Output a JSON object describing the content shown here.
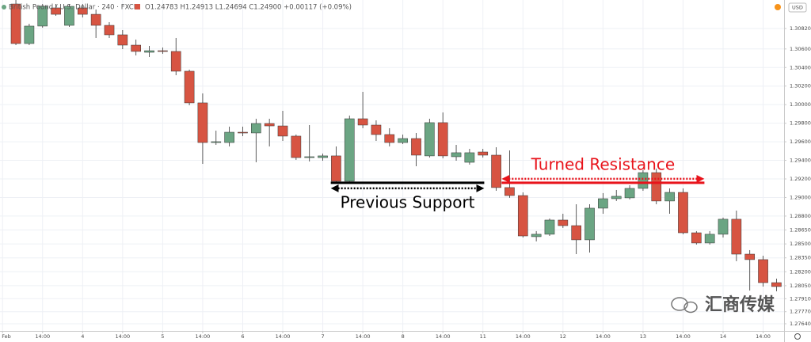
{
  "header": {
    "symbol": "British Pound / U.S. Dollar · 240 · FXCM",
    "ohlc": "O1.24783 H1.24913 L1.24694 C1.24900 +0.00117 (+0.09%)",
    "currency": "USD"
  },
  "watermark": "汇商传媒",
  "chart_data": {
    "type": "candlestick",
    "up_color": "#6ba583",
    "down_color": "#d75442",
    "open": [
      1.31084,
      1.30658,
      1.30846,
      1.31042,
      1.30854,
      1.31042,
      1.30973,
      1.30854,
      1.30752,
      1.30641,
      1.30564,
      1.30581,
      1.30573,
      1.3036,
      1.30019,
      1.29592,
      1.29592,
      1.29703,
      1.29695,
      1.29797,
      1.29771,
      1.29661,
      1.2943,
      1.2943,
      1.29448,
      1.29175,
      1.29848,
      1.2978,
      1.29678,
      1.29592,
      1.29635,
      1.29448,
      1.29806,
      1.29439,
      1.29379,
      1.2949,
      1.29456,
      1.29107,
      1.29021,
      1.28578,
      1.28604,
      1.28757,
      1.28697,
      1.28544,
      1.28885,
      1.28987,
      1.28996,
      1.29098,
      1.29268,
      1.28962,
      1.29055,
      1.2862,
      1.2851,
      1.28604,
      1.28766,
      1.2839,
      1.28331,
      1.28083
    ],
    "high": [
      1.31127,
      1.30871,
      1.31084,
      1.31084,
      1.31084,
      1.31084,
      1.31025,
      1.30888,
      1.30803,
      1.30701,
      1.30632,
      1.30615,
      1.30718,
      1.30377,
      1.30121,
      1.2972,
      1.29763,
      1.29763,
      1.29848,
      1.29848,
      1.29933,
      1.29678,
      1.2978,
      1.29473,
      1.2955,
      1.29882,
      1.30138,
      1.29831,
      1.29746,
      1.29678,
      1.29695,
      1.29848,
      1.29916,
      1.29567,
      1.29524,
      1.29524,
      1.29541,
      1.29507,
      1.29055,
      1.28638,
      1.28774,
      1.28825,
      1.28927,
      1.28927,
      1.29047,
      1.29081,
      1.29132,
      1.29294,
      1.29311,
      1.29098,
      1.29098,
      1.28638,
      1.28638,
      1.28783,
      1.28859,
      1.28433,
      1.28373,
      1.28126
    ],
    "low": [
      1.30641,
      1.30641,
      1.30829,
      1.30956,
      1.30837,
      1.30939,
      1.30718,
      1.30718,
      1.30598,
      1.3053,
      1.30513,
      1.30547,
      1.30317,
      1.29993,
      1.29362,
      1.29567,
      1.2955,
      1.29661,
      1.29379,
      1.2955,
      1.29609,
      1.29405,
      1.29388,
      1.29396,
      1.29149,
      1.29158,
      1.29746,
      1.29609,
      1.2955,
      1.29575,
      1.29337,
      1.2943,
      1.29422,
      1.29396,
      1.29354,
      1.2943,
      1.29072,
      1.28996,
      1.28569,
      1.28527,
      1.28586,
      1.28672,
      1.2839,
      1.28407,
      1.28825,
      1.28962,
      1.28979,
      1.29072,
      1.28927,
      1.28825,
      1.28604,
      1.28493,
      1.28493,
      1.28569,
      1.28314,
      1.27998,
      1.28041,
      1.2799
    ],
    "close": [
      1.30658,
      1.30846,
      1.31059,
      1.30973,
      1.31059,
      1.30973,
      1.30854,
      1.30752,
      1.30641,
      1.30573,
      1.30581,
      1.30573,
      1.3036,
      1.30019,
      1.29592,
      1.29601,
      1.29703,
      1.29695,
      1.29797,
      1.29771,
      1.29661,
      1.2943,
      1.29439,
      1.29448,
      1.29175,
      1.29848,
      1.2978,
      1.29678,
      1.29592,
      1.29635,
      1.29456,
      1.29806,
      1.29448,
      1.29482,
      1.29482,
      1.29456,
      1.29107,
      1.29021,
      1.28586,
      1.28604,
      1.28757,
      1.28697,
      1.28544,
      1.28885,
      1.28987,
      1.29013,
      1.29098,
      1.29268,
      1.28962,
      1.29055,
      1.2862,
      1.2851,
      1.28604,
      1.28766,
      1.2839,
      1.28331,
      1.28083,
      1.28041
    ],
    "xlim": [
      -1.19,
      57.57
    ],
    "xticks": [
      {
        "value": -1,
        "label": "Feb"
      },
      {
        "value": 2,
        "label": "14:00"
      },
      {
        "value": 5,
        "label": "4"
      },
      {
        "value": 8,
        "label": "14:00"
      },
      {
        "value": 11,
        "label": "5"
      },
      {
        "value": 14,
        "label": "14:00"
      },
      {
        "value": 17,
        "label": "6"
      },
      {
        "value": 20,
        "label": "14:00"
      },
      {
        "value": 23,
        "label": "7"
      },
      {
        "value": 26,
        "label": "14:00"
      },
      {
        "value": 29,
        "label": "8"
      },
      {
        "value": 32,
        "label": "14:00"
      },
      {
        "value": 35,
        "label": "11"
      },
      {
        "value": 38,
        "label": "14:00"
      },
      {
        "value": 41,
        "label": "12"
      },
      {
        "value": 44,
        "label": "14:00"
      },
      {
        "value": 47,
        "label": "13"
      },
      {
        "value": 50,
        "label": "14:00"
      },
      {
        "value": 53,
        "label": "14"
      },
      {
        "value": 56,
        "label": "14:00"
      }
    ],
    "ylim": [
      1.27563,
      1.31127
    ],
    "yticks": [
      {
        "value": 1.3082,
        "label": "1.30820"
      },
      {
        "value": 1.306,
        "label": "1.30600"
      },
      {
        "value": 1.304,
        "label": "1.30400"
      },
      {
        "value": 1.302,
        "label": "1.30200"
      },
      {
        "value": 1.3,
        "label": "1.30000"
      },
      {
        "value": 1.298,
        "label": "1.29800"
      },
      {
        "value": 1.296,
        "label": "1.29600"
      },
      {
        "value": 1.294,
        "label": "1.29400"
      },
      {
        "value": 1.292,
        "label": "1.29200"
      },
      {
        "value": 1.29,
        "label": "1.29000"
      },
      {
        "value": 1.288,
        "label": "1.28800"
      },
      {
        "value": 1.2865,
        "label": "1.28650"
      },
      {
        "value": 1.285,
        "label": "1.28500"
      },
      {
        "value": 1.2835,
        "label": "1.28350"
      },
      {
        "value": 1.282,
        "label": "1.28200"
      },
      {
        "value": 1.2805,
        "label": "1.28050"
      },
      {
        "value": 1.2791,
        "label": "1.27910"
      },
      {
        "value": 1.2777,
        "label": "1.27770"
      },
      {
        "value": 1.2764,
        "label": "1.27640"
      }
    ],
    "grid": true,
    "annotations": [
      {
        "text": "Previous Support",
        "level": 1.29158,
        "from": 23.6,
        "to": 35.1,
        "color": "#000000",
        "text_side": "below"
      },
      {
        "text": "Turned Resistance",
        "level": 1.29158,
        "from": 36.4,
        "to": 51.6,
        "color": "#e8131b",
        "text_side": "above"
      }
    ]
  }
}
